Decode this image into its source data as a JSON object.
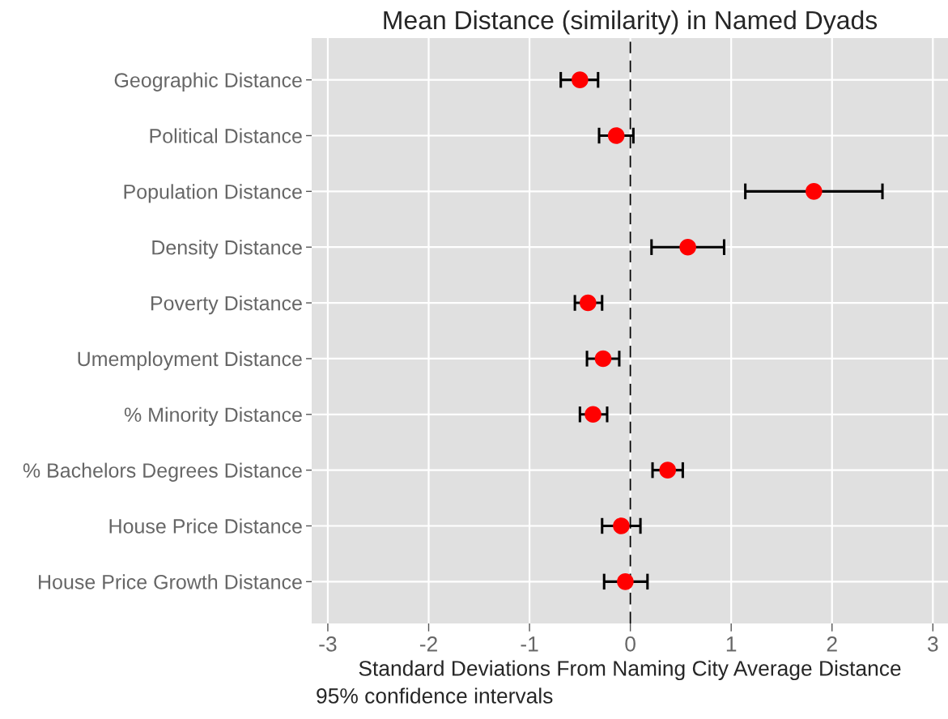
{
  "chart_data": {
    "type": "scatter",
    "orientation": "horizontal",
    "title": "Mean Distance (similarity) in Named Dyads",
    "xlabel": "Standard Deviations From Naming City Average Distance",
    "annotations": [
      "95% confidence intervals"
    ],
    "categories": [
      "Geographic Distance",
      "Political Distance",
      "Population Distance",
      "Density Distance",
      "Poverty Distance",
      "Umemployment Distance",
      "% Minority Distance",
      "% Bachelors Degrees Distance",
      "House Price Distance",
      "House Price Growth Distance"
    ],
    "series": [
      {
        "color": "#ff0000",
        "values": [
          -0.5,
          -0.14,
          1.82,
          0.57,
          -0.42,
          -0.27,
          -0.37,
          0.37,
          -0.09,
          -0.05
        ],
        "errors": [
          [
            -0.69,
            -0.32
          ],
          [
            -0.31,
            0.03
          ],
          [
            1.14,
            2.5
          ],
          [
            0.21,
            0.93
          ],
          [
            -0.55,
            -0.28
          ],
          [
            -0.43,
            -0.11
          ],
          [
            -0.5,
            -0.23
          ],
          [
            0.22,
            0.52
          ],
          [
            -0.28,
            0.1
          ],
          [
            -0.26,
            0.17
          ]
        ]
      }
    ],
    "xlim": [
      -3.16,
      3.15
    ],
    "xticks": [
      -3,
      -2,
      -1,
      0,
      1,
      2,
      3
    ],
    "ref_lines": [
      {
        "axis": "x",
        "value": 0,
        "color": "#000000",
        "line_style": "dashed"
      }
    ],
    "grid": true,
    "marker": "circle",
    "legend": false
  }
}
